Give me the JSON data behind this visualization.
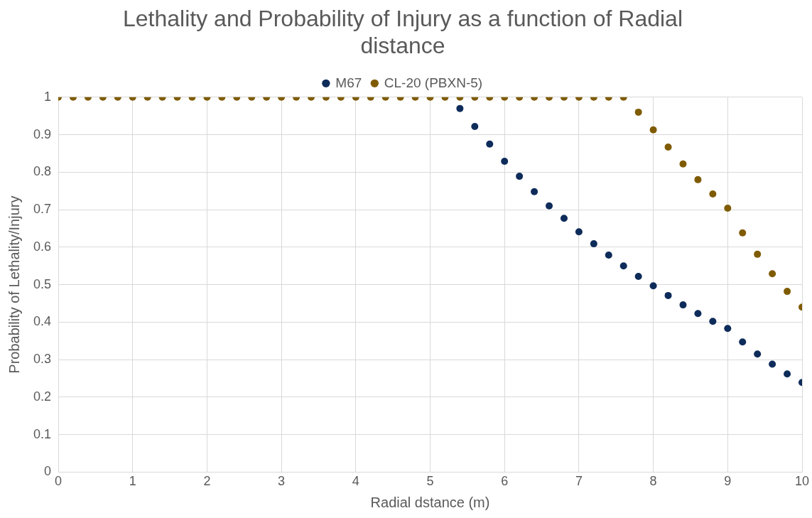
{
  "chart_data": {
    "type": "scatter",
    "title": "Lethality and Probability of Injury as a function of Radial distance",
    "xlabel": "Radial dstance (m)",
    "ylabel": "Probability of Lethality/Injury",
    "x": [
      0,
      0.2,
      0.4,
      0.6,
      0.8,
      1,
      1.2,
      1.4,
      1.6,
      1.8,
      2,
      2.2,
      2.4,
      2.6,
      2.8,
      3,
      3.2,
      3.4,
      3.6,
      3.8,
      4,
      4.2,
      4.4,
      4.6,
      4.8,
      5,
      5.2,
      5.4,
      5.6,
      5.8,
      6,
      6.2,
      6.4,
      6.6,
      6.8,
      7,
      7.2,
      7.4,
      7.6,
      7.8,
      8,
      8.2,
      8.4,
      8.6,
      8.8,
      9,
      9.2,
      9.4,
      9.6,
      9.8,
      10
    ],
    "series": [
      {
        "name": "M67",
        "color": "#0e2c5a",
        "values": [
          null,
          null,
          null,
          null,
          null,
          null,
          null,
          null,
          null,
          null,
          null,
          null,
          null,
          null,
          null,
          null,
          null,
          null,
          null,
          null,
          null,
          null,
          null,
          null,
          null,
          null,
          null,
          0.97,
          0.922,
          0.875,
          0.829,
          0.789,
          0.748,
          0.71,
          0.677,
          0.641,
          0.609,
          0.579,
          0.55,
          0.522,
          0.497,
          0.471,
          0.446,
          0.423,
          0.402,
          0.383,
          0.347,
          0.315,
          0.288,
          0.262,
          0.239
        ]
      },
      {
        "name": "CL-20 (PBXN-5)",
        "color": "#7f5b00",
        "values": [
          1,
          1,
          1,
          1,
          1,
          1,
          1,
          1,
          1,
          1,
          1,
          1,
          1,
          1,
          1,
          1,
          1,
          1,
          1,
          1,
          1,
          1,
          1,
          1,
          1,
          1,
          1,
          1,
          1,
          1,
          1,
          1,
          1,
          1,
          1,
          1,
          1,
          1,
          1,
          0.96,
          0.913,
          0.867,
          0.822,
          0.78,
          0.742,
          0.704,
          0.638,
          0.581,
          0.529,
          0.482,
          0.44
        ]
      }
    ],
    "xlim": [
      0,
      10
    ],
    "xticks": [
      0,
      1,
      2,
      3,
      4,
      5,
      6,
      7,
      8,
      9,
      10
    ],
    "ylim": [
      0,
      1
    ],
    "yticks": [
      0,
      0.1,
      0.2,
      0.3,
      0.4,
      0.5,
      0.6,
      0.7,
      0.8,
      0.9,
      1
    ],
    "grid": true,
    "legend": "top",
    "marker": "circle"
  }
}
